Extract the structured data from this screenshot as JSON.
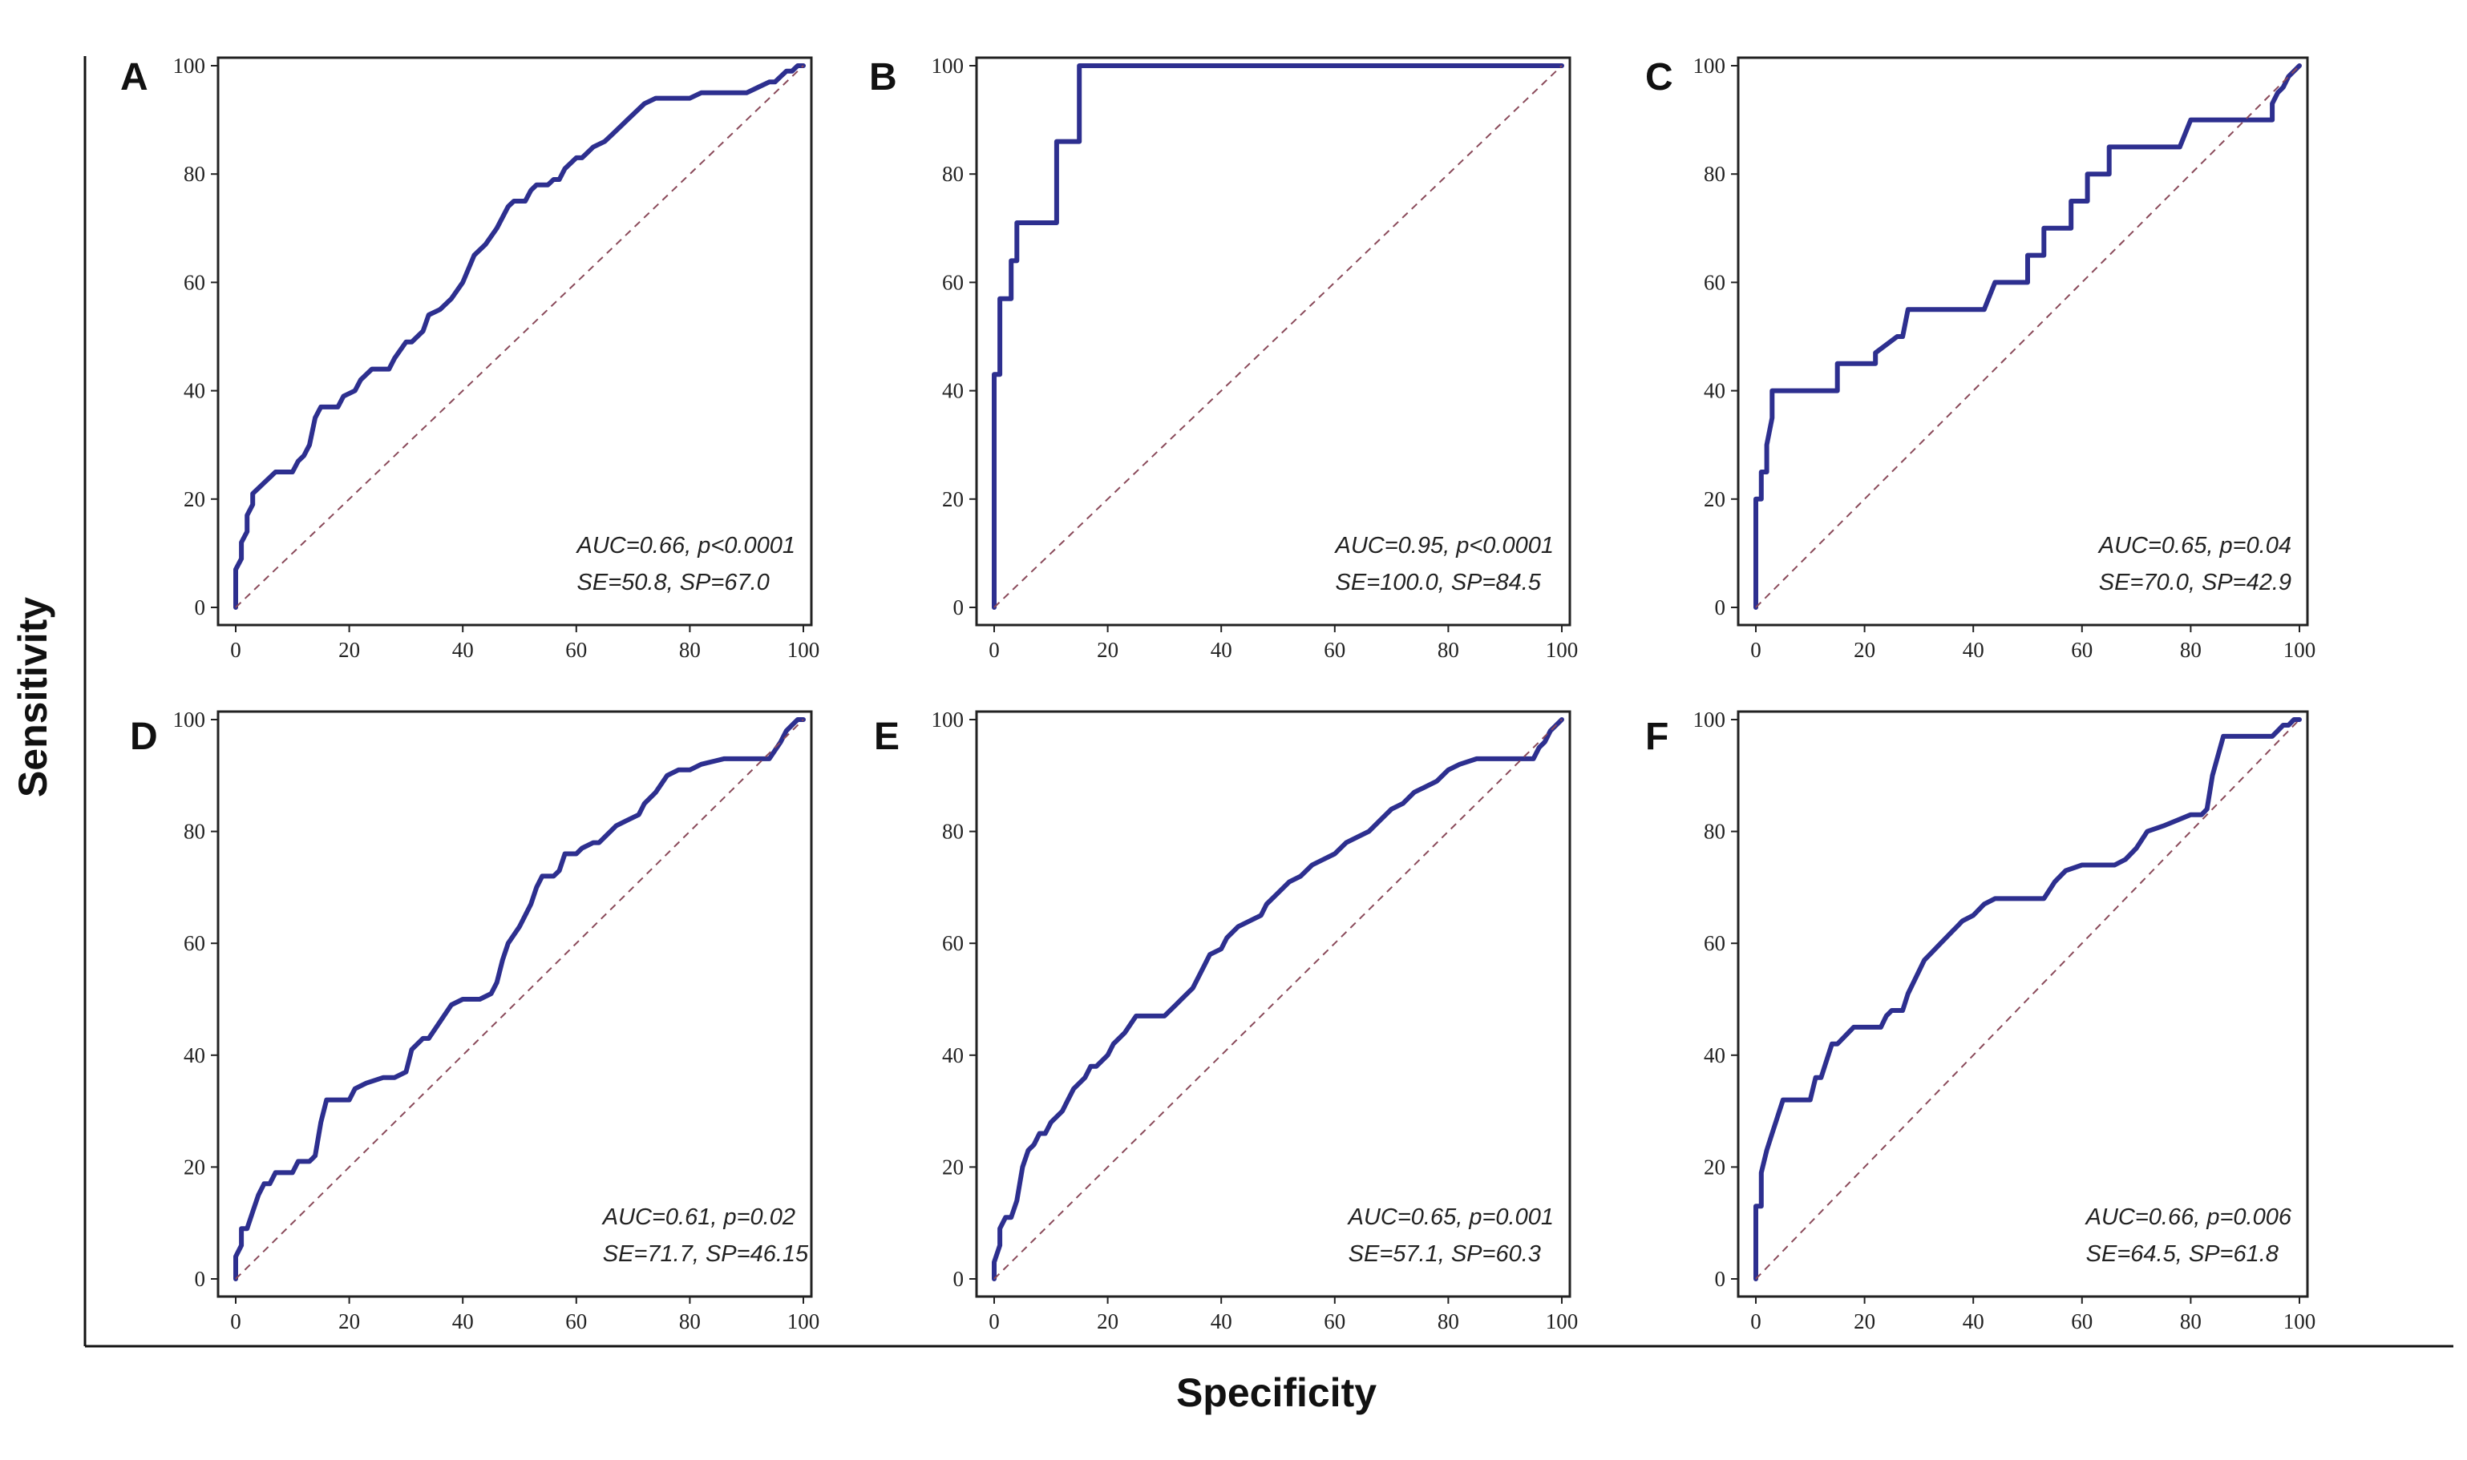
{
  "figure": {
    "x_axis_title": "Specificity",
    "y_axis_title": "Sensitivity",
    "colors": {
      "roc_line": "#2d2f8f",
      "reference_line": "#8a4a5a",
      "axis": "#222222"
    }
  },
  "chart_data": [
    {
      "type": "line",
      "panel": "A",
      "xlim": [
        0,
        100
      ],
      "ylim": [
        0,
        100
      ],
      "xticks": [
        "0",
        "20",
        "40",
        "60",
        "80",
        "100"
      ],
      "yticks": [
        "0",
        "20",
        "40",
        "60",
        "80",
        "100"
      ],
      "annotation_line1": "AUC=0.66, p<0.0001",
      "annotation_line2": "SE=50.8, SP=67.0",
      "series": [
        {
          "name": "ROC",
          "x": [
            0,
            0,
            1,
            1,
            2,
            2,
            3,
            3,
            4,
            5,
            6,
            7,
            8,
            10,
            11,
            12,
            13,
            14,
            15,
            18,
            19,
            21,
            22,
            24,
            27,
            28,
            30,
            31,
            33,
            34,
            36,
            38,
            40,
            42,
            44,
            46,
            48,
            49,
            51,
            52,
            53,
            55,
            56,
            57,
            58,
            60,
            61,
            62,
            63,
            65,
            66,
            68,
            69,
            72,
            74,
            77,
            80,
            82,
            84,
            86,
            88,
            90,
            92,
            94,
            95,
            96,
            97,
            98,
            99,
            100
          ],
          "y": [
            0,
            7,
            9,
            12,
            14,
            17,
            19,
            21,
            22,
            23,
            24,
            25,
            25,
            25,
            27,
            28,
            30,
            35,
            37,
            37,
            39,
            40,
            42,
            44,
            44,
            46,
            49,
            49,
            51,
            54,
            55,
            57,
            60,
            65,
            67,
            70,
            74,
            75,
            75,
            77,
            78,
            78,
            79,
            79,
            81,
            83,
            83,
            84,
            85,
            86,
            87,
            89,
            90,
            93,
            94,
            94,
            94,
            95,
            95,
            95,
            95,
            95,
            96,
            97,
            97,
            98,
            99,
            99,
            100,
            100
          ]
        },
        {
          "name": "Reference",
          "x": [
            0,
            100
          ],
          "y": [
            0,
            100
          ]
        }
      ]
    },
    {
      "type": "line",
      "panel": "B",
      "xlim": [
        0,
        100
      ],
      "ylim": [
        0,
        100
      ],
      "xticks": [
        "0",
        "20",
        "40",
        "60",
        "80",
        "100"
      ],
      "yticks": [
        "0",
        "20",
        "40",
        "60",
        "80",
        "100"
      ],
      "annotation_line1": "AUC=0.95, p<0.0001",
      "annotation_line2": "SE=100.0, SP=84.5",
      "series": [
        {
          "name": "ROC",
          "x": [
            0,
            0,
            1,
            1,
            3,
            3,
            4,
            4,
            11,
            11,
            14,
            14,
            15,
            15,
            100
          ],
          "y": [
            0,
            43,
            43,
            57,
            57,
            64,
            64,
            71,
            71,
            86,
            86,
            86,
            86,
            100,
            100
          ]
        },
        {
          "name": "Reference",
          "x": [
            0,
            100
          ],
          "y": [
            0,
            100
          ]
        }
      ]
    },
    {
      "type": "line",
      "panel": "C",
      "xlim": [
        0,
        100
      ],
      "ylim": [
        0,
        100
      ],
      "xticks": [
        "0",
        "20",
        "40",
        "60",
        "80",
        "100"
      ],
      "yticks": [
        "0",
        "20",
        "40",
        "60",
        "80",
        "100"
      ],
      "annotation_line1": "AUC=0.65, p=0.04",
      "annotation_line2": "SE=70.0, SP=42.9",
      "series": [
        {
          "name": "ROC",
          "x": [
            0,
            0,
            1,
            1,
            2,
            2,
            3,
            3,
            15,
            15,
            22,
            22,
            26,
            27,
            28,
            29,
            42,
            44,
            50,
            50,
            53,
            53,
            58,
            58,
            61,
            61,
            65,
            65,
            78,
            80,
            95,
            95,
            96,
            97,
            98,
            100
          ],
          "y": [
            0,
            20,
            20,
            25,
            25,
            30,
            35,
            40,
            40,
            45,
            45,
            47,
            50,
            50,
            55,
            55,
            55,
            60,
            60,
            65,
            65,
            70,
            70,
            75,
            75,
            80,
            80,
            85,
            85,
            90,
            90,
            93,
            95,
            96,
            98,
            100
          ]
        },
        {
          "name": "Reference",
          "x": [
            0,
            100
          ],
          "y": [
            0,
            100
          ]
        }
      ]
    },
    {
      "type": "line",
      "panel": "D",
      "xlim": [
        0,
        100
      ],
      "ylim": [
        0,
        100
      ],
      "xticks": [
        "0",
        "20",
        "40",
        "60",
        "80",
        "100"
      ],
      "yticks": [
        "0",
        "20",
        "40",
        "60",
        "80",
        "100"
      ],
      "annotation_line1": "AUC=0.61, p=0.02",
      "annotation_line2": "SE=71.7, SP=46.15",
      "series": [
        {
          "name": "ROC",
          "x": [
            0,
            0,
            1,
            1,
            2,
            3,
            4,
            5,
            6,
            7,
            10,
            11,
            13,
            14,
            15,
            16,
            20,
            21,
            23,
            26,
            28,
            30,
            31,
            33,
            34,
            36,
            38,
            40,
            43,
            45,
            46,
            47,
            48,
            50,
            52,
            53,
            54,
            56,
            57,
            58,
            60,
            61,
            63,
            64,
            66,
            67,
            69,
            71,
            72,
            74,
            76,
            78,
            80,
            82,
            86,
            88,
            94,
            96,
            97,
            98,
            99,
            100
          ],
          "y": [
            0,
            4,
            6,
            9,
            9,
            12,
            15,
            17,
            17,
            19,
            19,
            21,
            21,
            22,
            28,
            32,
            32,
            34,
            35,
            36,
            36,
            37,
            41,
            43,
            43,
            46,
            49,
            50,
            50,
            51,
            53,
            57,
            60,
            63,
            67,
            70,
            72,
            72,
            73,
            76,
            76,
            77,
            78,
            78,
            80,
            81,
            82,
            83,
            85,
            87,
            90,
            91,
            91,
            92,
            93,
            93,
            93,
            96,
            98,
            99,
            100,
            100
          ]
        },
        {
          "name": "Reference",
          "x": [
            0,
            100
          ],
          "y": [
            0,
            100
          ]
        }
      ]
    },
    {
      "type": "line",
      "panel": "E",
      "xlim": [
        0,
        100
      ],
      "ylim": [
        0,
        100
      ],
      "xticks": [
        "0",
        "20",
        "40",
        "60",
        "80",
        "100"
      ],
      "yticks": [
        "0",
        "20",
        "40",
        "60",
        "80",
        "100"
      ],
      "annotation_line1": "AUC=0.65, p=0.001",
      "annotation_line2": "SE=57.1, SP=60.3",
      "series": [
        {
          "name": "ROC",
          "x": [
            0,
            0,
            1,
            1,
            2,
            3,
            4,
            5,
            6,
            7,
            8,
            9,
            10,
            11,
            12,
            13,
            14,
            16,
            17,
            18,
            20,
            21,
            23,
            25,
            27,
            30,
            32,
            33,
            35,
            37,
            38,
            40,
            41,
            43,
            45,
            47,
            48,
            50,
            52,
            54,
            56,
            58,
            60,
            62,
            64,
            66,
            68,
            70,
            72,
            74,
            76,
            78,
            80,
            82,
            85,
            88,
            90,
            92,
            94,
            95,
            96,
            97,
            98,
            99,
            100
          ],
          "y": [
            0,
            3,
            6,
            9,
            11,
            11,
            14,
            20,
            23,
            24,
            26,
            26,
            28,
            29,
            30,
            32,
            34,
            36,
            38,
            38,
            40,
            42,
            44,
            47,
            47,
            47,
            49,
            50,
            52,
            56,
            58,
            59,
            61,
            63,
            64,
            65,
            67,
            69,
            71,
            72,
            74,
            75,
            76,
            78,
            79,
            80,
            82,
            84,
            85,
            87,
            88,
            89,
            91,
            92,
            93,
            93,
            93,
            93,
            93,
            93,
            95,
            96,
            98,
            99,
            100
          ]
        },
        {
          "name": "Reference",
          "x": [
            0,
            100
          ],
          "y": [
            0,
            100
          ]
        }
      ]
    },
    {
      "type": "line",
      "panel": "F",
      "xlim": [
        0,
        100
      ],
      "ylim": [
        0,
        100
      ],
      "xticks": [
        "0",
        "20",
        "40",
        "60",
        "80",
        "100"
      ],
      "yticks": [
        "0",
        "20",
        "40",
        "60",
        "80",
        "100"
      ],
      "annotation_line1": "AUC=0.66, p=0.006",
      "annotation_line2": "SE=64.5, SP=61.8",
      "series": [
        {
          "name": "ROC",
          "x": [
            0,
            0,
            1,
            1,
            2,
            3,
            4,
            5,
            6,
            7,
            8,
            10,
            11,
            12,
            13,
            14,
            15,
            17,
            18,
            19,
            23,
            24,
            25,
            27,
            28,
            29,
            30,
            31,
            32,
            34,
            35,
            36,
            37,
            38,
            40,
            42,
            44,
            46,
            48,
            50,
            53,
            55,
            57,
            60,
            62,
            64,
            66,
            68,
            70,
            72,
            75,
            80,
            82,
            83,
            84,
            86,
            90,
            93,
            95,
            96,
            97,
            98,
            99,
            100
          ],
          "y": [
            0,
            13,
            13,
            19,
            23,
            26,
            29,
            32,
            32,
            32,
            32,
            32,
            36,
            36,
            39,
            42,
            42,
            44,
            45,
            45,
            45,
            47,
            48,
            48,
            51,
            53,
            55,
            57,
            58,
            60,
            61,
            62,
            63,
            64,
            65,
            67,
            68,
            68,
            68,
            68,
            68,
            71,
            73,
            74,
            74,
            74,
            74,
            75,
            77,
            80,
            81,
            83,
            83,
            84,
            90,
            97,
            97,
            97,
            97,
            98,
            99,
            99,
            100,
            100
          ]
        },
        {
          "name": "Reference",
          "x": [
            0,
            100
          ],
          "y": [
            0,
            100
          ]
        }
      ]
    }
  ]
}
